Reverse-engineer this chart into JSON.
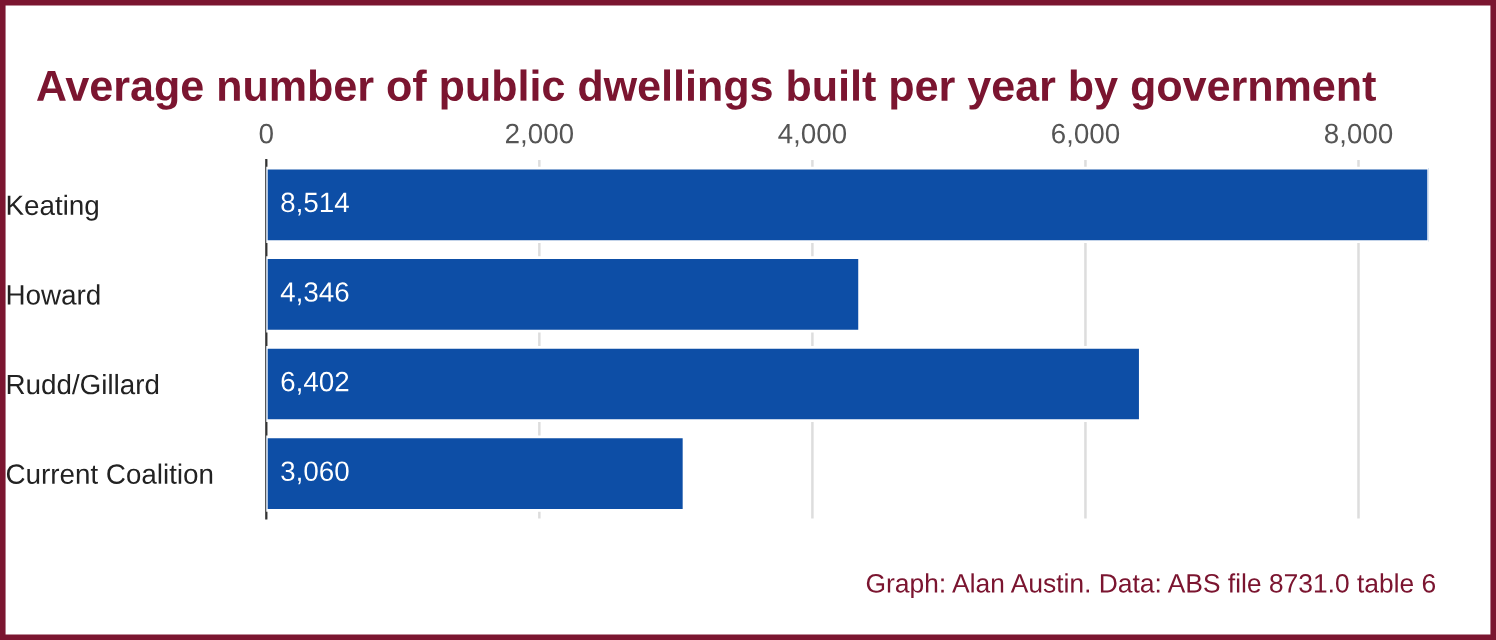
{
  "chart_data": {
    "type": "bar",
    "orientation": "horizontal",
    "title": "Average number of public dwellings built per year by government",
    "categories": [
      "Keating",
      "Howard",
      "Rudd/Gillard",
      "Current Coalition"
    ],
    "values": [
      8514,
      4346,
      6402,
      3060
    ],
    "color": "#0d4ea6",
    "value_labels": [
      "8,514",
      "4,346",
      "6,402",
      "3,060"
    ],
    "xlim": [
      0,
      8514
    ],
    "xticks": [
      0,
      {
        "value": 2000,
        "label": "2,000"
      },
      {
        "value": 4000,
        "label": "4,000"
      },
      {
        "value": 6000,
        "label": "6,000"
      },
      {
        "value": 8000,
        "label": "8,000"
      }
    ],
    "grid": "x",
    "annotations": [
      "Graph: Alan Austin. Data: ABS file 8731.0 table 6"
    ]
  }
}
